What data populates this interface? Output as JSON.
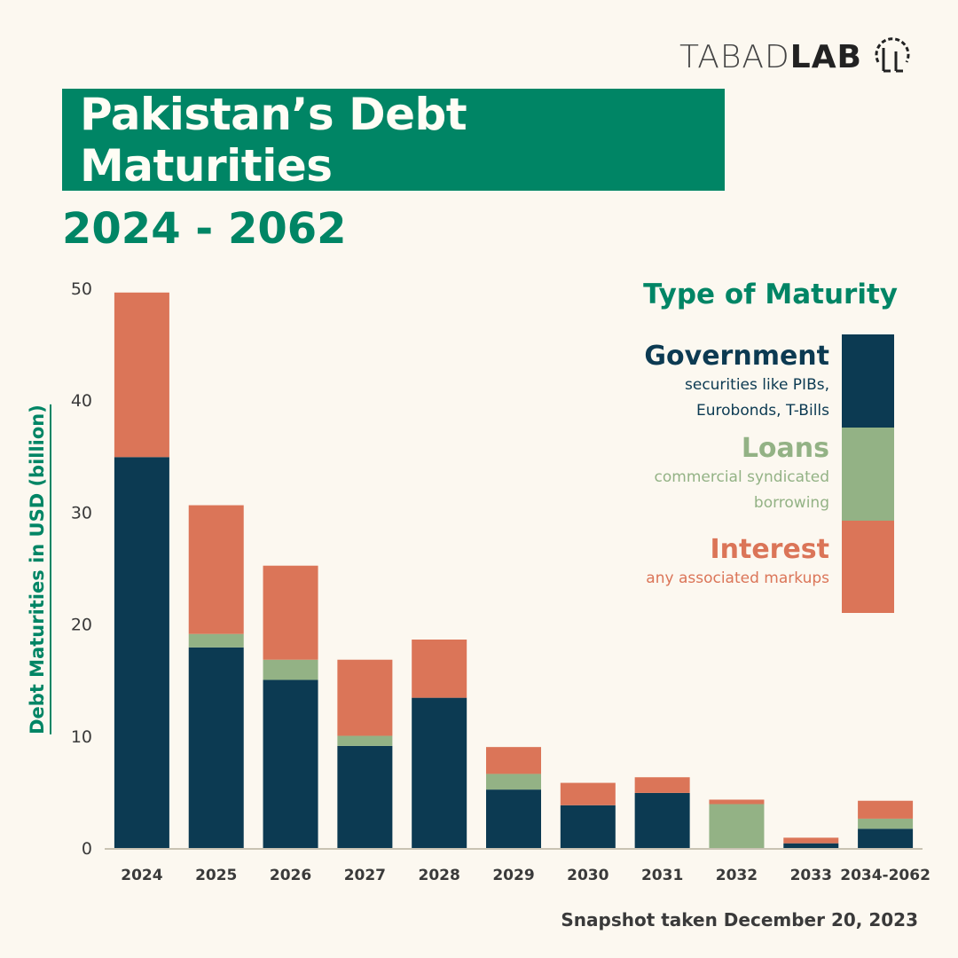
{
  "logo": {
    "light": "TABAD",
    "bold": "LAB"
  },
  "title": "Pakistan’s Debt Maturities",
  "subtitle": "2024 - 2062",
  "legend": {
    "title": "Type of Maturity",
    "items": [
      {
        "name": "Government",
        "desc1": "securities like PIBs,",
        "desc2": "Eurobonds, T-Bills",
        "color": "#0c3a52"
      },
      {
        "name": "Loans",
        "desc1": "commercial syndicated",
        "desc2": "borrowing",
        "color": "#93b285"
      },
      {
        "name": "Interest",
        "desc1": "any associated markups",
        "desc2": "",
        "color": "#db7558"
      }
    ]
  },
  "footer": "Snapshot taken December 20, 2023",
  "chart_data": {
    "type": "bar",
    "stacked": true,
    "ylabel": "Debt Maturities in USD (billion)",
    "xlabel": "",
    "ylim": [
      0,
      50
    ],
    "yticks": [
      0,
      10,
      20,
      30,
      40,
      50
    ],
    "grid": false,
    "legend_position": "right",
    "categories": [
      "2024",
      "2025",
      "2026",
      "2027",
      "2028",
      "2029",
      "2030",
      "2031",
      "2032",
      "2033",
      "2034-2062"
    ],
    "series": [
      {
        "name": "Government",
        "color": "#0c3a52",
        "values": [
          35.0,
          18.0,
          15.1,
          9.2,
          13.5,
          5.3,
          3.9,
          5.0,
          0.0,
          0.5,
          1.8
        ]
      },
      {
        "name": "Loans",
        "color": "#93b285",
        "values": [
          0.0,
          1.2,
          1.8,
          0.9,
          0.0,
          1.4,
          0.0,
          0.0,
          4.0,
          0.0,
          0.9
        ]
      },
      {
        "name": "Interest",
        "color": "#db7558",
        "values": [
          14.7,
          11.5,
          8.4,
          6.8,
          5.2,
          2.4,
          2.0,
          1.4,
          0.4,
          0.5,
          1.6
        ]
      }
    ]
  }
}
